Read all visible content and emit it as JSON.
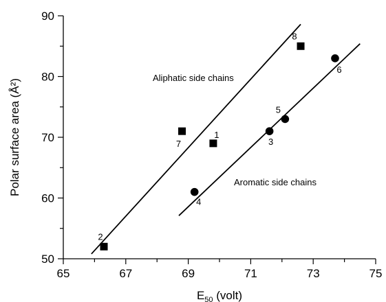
{
  "chart_data": {
    "type": "scatter",
    "xlabel_main": "E",
    "xlabel_sub": "50",
    "xlabel_unit": " (volt)",
    "ylabel": "Polar surface area (Å²)",
    "xlim": [
      65,
      75
    ],
    "ylim": [
      50,
      90
    ],
    "x_ticks": [
      "65",
      "67",
      "69",
      "71",
      "73",
      "75"
    ],
    "y_ticks": [
      "50",
      "60",
      "70",
      "80",
      "90"
    ],
    "series": [
      {
        "marker": "square",
        "annotation": "Aliphatic side chains",
        "points": [
          {
            "label": "2",
            "x": 66.3,
            "y": 52
          },
          {
            "label": "7",
            "x": 68.8,
            "y": 71
          },
          {
            "label": "1",
            "x": 69.8,
            "y": 69
          },
          {
            "label": "8",
            "x": 72.6,
            "y": 85
          }
        ],
        "fit": [
          [
            65.9,
            50.8
          ],
          [
            72.6,
            88.6
          ]
        ]
      },
      {
        "marker": "circle",
        "annotation": "Aromatic side chains",
        "points": [
          {
            "label": "4",
            "x": 69.2,
            "y": 61
          },
          {
            "label": "3",
            "x": 71.6,
            "y": 71
          },
          {
            "label": "5",
            "x": 72.1,
            "y": 73
          },
          {
            "label": "6",
            "x": 73.7,
            "y": 83
          }
        ],
        "fit": [
          [
            68.7,
            57.1
          ],
          [
            74.5,
            85.4
          ]
        ]
      }
    ]
  }
}
